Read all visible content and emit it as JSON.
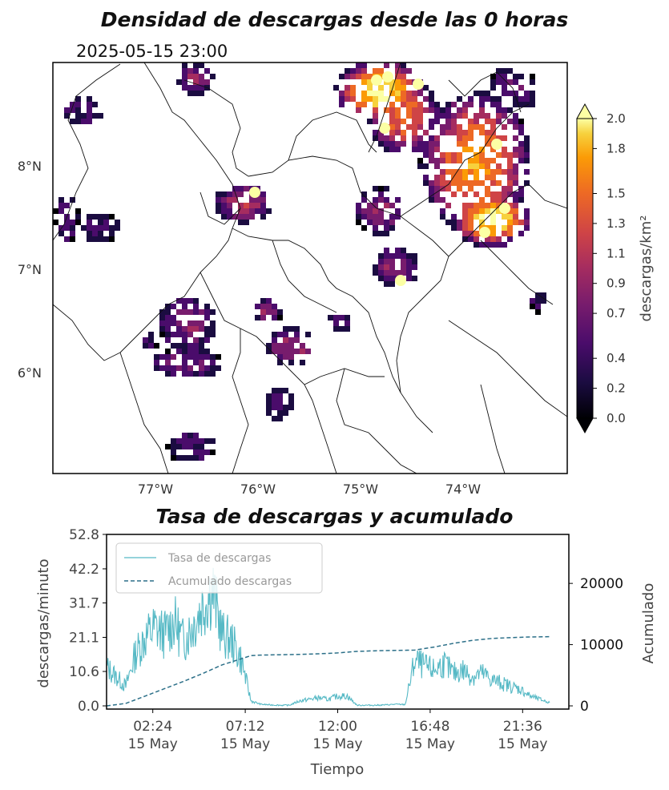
{
  "map": {
    "title": "Densidad de descargas desde las 0 horas",
    "timestamp": "2025-05-15 23:00",
    "lat_labels": [
      "8°N",
      "7°N",
      "6°N"
    ],
    "lon_labels": [
      "77°W",
      "76°W",
      "75°W",
      "74°W"
    ],
    "colorbar": {
      "label": "descargas/km²",
      "ticks": [
        "0.0",
        "0.2",
        "0.4",
        "0.7",
        "0.9",
        "1.1",
        "1.3",
        "1.5",
        "1.8",
        "2.0"
      ],
      "colormap": "inferno"
    }
  },
  "chart_data": {
    "type": "line",
    "title": "Tasa de descargas y acumulado",
    "xlabel": "Tiempo",
    "ylabel": "descargas/minuto",
    "y2label": "Acumulado",
    "x_ticks": [
      "02:24\n15 May",
      "07:12\n15 May",
      "12:00\n15 May",
      "16:48\n15 May",
      "21:36\n15 May"
    ],
    "x_tick_hours": [
      2.4,
      7.2,
      12.0,
      16.8,
      21.6
    ],
    "xlim_hours": [
      0,
      24
    ],
    "y_ticks": [
      "0.0",
      "10.6",
      "21.1",
      "31.7",
      "42.2",
      "52.8"
    ],
    "ylim": [
      0,
      52.8
    ],
    "y2_ticks": [
      "0",
      "10000",
      "20000"
    ],
    "y2lim": [
      0,
      28000
    ],
    "legend_position": "top-left",
    "series": [
      {
        "name": "Tasa de descargas",
        "axis": "left",
        "color": "#56b9c5",
        "style": "solid",
        "x_hours": [
          0,
          0.5,
          1,
          1.5,
          2,
          2.5,
          3,
          3.5,
          4,
          4.5,
          5,
          5.5,
          6,
          6.5,
          7,
          7.5,
          8,
          8.5,
          9,
          9.5,
          10,
          10.5,
          11,
          11.5,
          12,
          12.5,
          13,
          13.5,
          14,
          14.5,
          15,
          15.5,
          16,
          16.5,
          17,
          17.5,
          18,
          18.5,
          19,
          19.5,
          20,
          20.5,
          21,
          21.5,
          22,
          22.5,
          23
        ],
        "values": [
          12,
          9,
          6,
          16,
          21,
          24,
          22,
          26,
          20,
          25,
          31,
          36,
          22,
          20,
          14,
          1.5,
          0.5,
          0.3,
          0.2,
          0.2,
          1.5,
          2,
          2.5,
          2,
          3,
          3,
          0.2,
          0.2,
          0.2,
          0.3,
          0.5,
          0.4,
          14,
          12,
          11,
          13,
          10,
          11,
          9,
          10,
          8,
          7,
          6,
          5,
          3,
          2,
          1
        ]
      },
      {
        "name": "Acumulado descargas",
        "axis": "right",
        "color": "#2b6f88",
        "style": "dashed",
        "x_hours": [
          0,
          1,
          2,
          3,
          4,
          5,
          6,
          7,
          7.5,
          8,
          9,
          10,
          11,
          12,
          13,
          14,
          15,
          16,
          17,
          18,
          19,
          20,
          21,
          22,
          23
        ],
        "values": [
          0,
          400,
          1600,
          2800,
          4000,
          5300,
          6700,
          7700,
          8200,
          8300,
          8350,
          8400,
          8500,
          8650,
          8900,
          9000,
          9050,
          9100,
          9600,
          10200,
          10700,
          11000,
          11150,
          11250,
          11300
        ]
      }
    ]
  }
}
